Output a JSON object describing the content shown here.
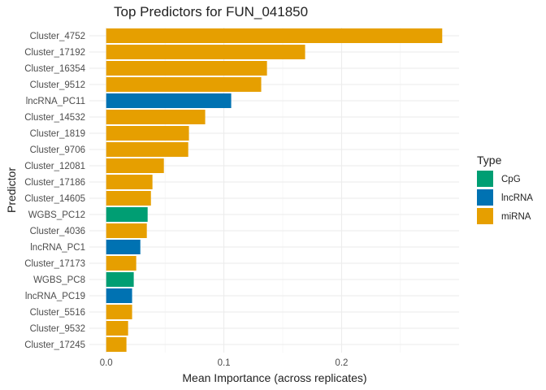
{
  "chart_data": {
    "type": "bar",
    "orientation": "horizontal",
    "title": "Top Predictors for FUN_041850",
    "xlabel": "Mean Importance (across replicates)",
    "ylabel": "Predictor",
    "xlim": [
      -0.0143,
      0.2998
    ],
    "xticks": [
      0.0,
      0.1,
      0.2
    ],
    "xtick_labels": [
      "0.0",
      "0.1",
      "0.2"
    ],
    "grid": true,
    "legend": {
      "title": "Type",
      "placement": "right",
      "entries": [
        {
          "label": "CpG",
          "color": "#009E73"
        },
        {
          "label": "lncRNA",
          "color": "#0072B2"
        },
        {
          "label": "miRNA",
          "color": "#E69F00"
        }
      ]
    },
    "categories": [
      "Cluster_4752",
      "Cluster_17192",
      "Cluster_16354",
      "Cluster_9512",
      "lncRNA_PC11",
      "Cluster_14532",
      "Cluster_1819",
      "Cluster_9706",
      "Cluster_12081",
      "Cluster_17186",
      "Cluster_14605",
      "WGBS_PC12",
      "Cluster_4036",
      "lncRNA_PC1",
      "Cluster_17173",
      "WGBS_PC8",
      "lncRNA_PC19",
      "Cluster_5516",
      "Cluster_9532",
      "Cluster_17245"
    ],
    "values": [
      0.2855,
      0.169,
      0.1366,
      0.1317,
      0.1062,
      0.0841,
      0.0703,
      0.0697,
      0.049,
      0.0393,
      0.038,
      0.0352,
      0.0345,
      0.029,
      0.0255,
      0.0234,
      0.022,
      0.022,
      0.0186,
      0.0172
    ],
    "types": [
      "miRNA",
      "miRNA",
      "miRNA",
      "miRNA",
      "lncRNA",
      "miRNA",
      "miRNA",
      "miRNA",
      "miRNA",
      "miRNA",
      "miRNA",
      "CpG",
      "miRNA",
      "lncRNA",
      "miRNA",
      "CpG",
      "lncRNA",
      "miRNA",
      "miRNA",
      "miRNA"
    ]
  }
}
